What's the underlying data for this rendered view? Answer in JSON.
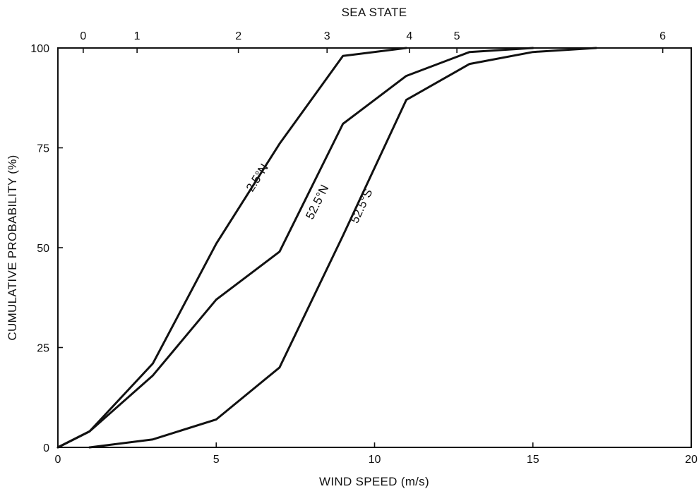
{
  "chart_data": {
    "type": "line",
    "title": "",
    "xlabel": "WIND SPEED  (m/s)",
    "ylabel": "CUMULATIVE PROBABILITY  (%)",
    "top_axis_label": "SEA STATE",
    "xlim": [
      0,
      20
    ],
    "ylim": [
      0,
      100
    ],
    "grid": false,
    "legend": "none (series labelled inline on curves)",
    "x_ticks": [
      0,
      5,
      10,
      15,
      20
    ],
    "x_tick_labels": [
      "0",
      "5",
      "10",
      "15",
      "20"
    ],
    "y_ticks": [
      0,
      25,
      50,
      75,
      100
    ],
    "y_tick_labels": [
      "0",
      "25",
      "50",
      "75",
      "100"
    ],
    "top_ticks": [
      {
        "label": "0",
        "x": 0.8
      },
      {
        "label": "1",
        "x": 2.5
      },
      {
        "label": "2",
        "x": 5.7
      },
      {
        "label": "3",
        "x": 8.5
      },
      {
        "label": "4",
        "x": 11.1
      },
      {
        "label": "5",
        "x": 12.6
      },
      {
        "label": "6",
        "x": 19.1
      }
    ],
    "series": [
      {
        "name": "2.5°N",
        "x": [
          0,
          1,
          3,
          5,
          7,
          9,
          11
        ],
        "y": [
          0,
          4,
          21,
          51,
          76,
          98,
          100
        ],
        "label_at": {
          "x": 6.4,
          "y": 67
        }
      },
      {
        "name": "52.5°N",
        "x": [
          0,
          1,
          3,
          5,
          7,
          9,
          11,
          13,
          15
        ],
        "y": [
          0,
          4,
          18,
          37,
          49,
          81,
          93,
          99,
          100
        ],
        "label_at": {
          "x": 8.3,
          "y": 61
        }
      },
      {
        "name": "52.5°S",
        "x": [
          1,
          3,
          5,
          7,
          9,
          11,
          13,
          15,
          17
        ],
        "y": [
          0,
          2,
          7,
          20,
          53,
          87,
          96,
          99,
          100
        ],
        "label_at": {
          "x": 9.7,
          "y": 60
        }
      }
    ]
  }
}
